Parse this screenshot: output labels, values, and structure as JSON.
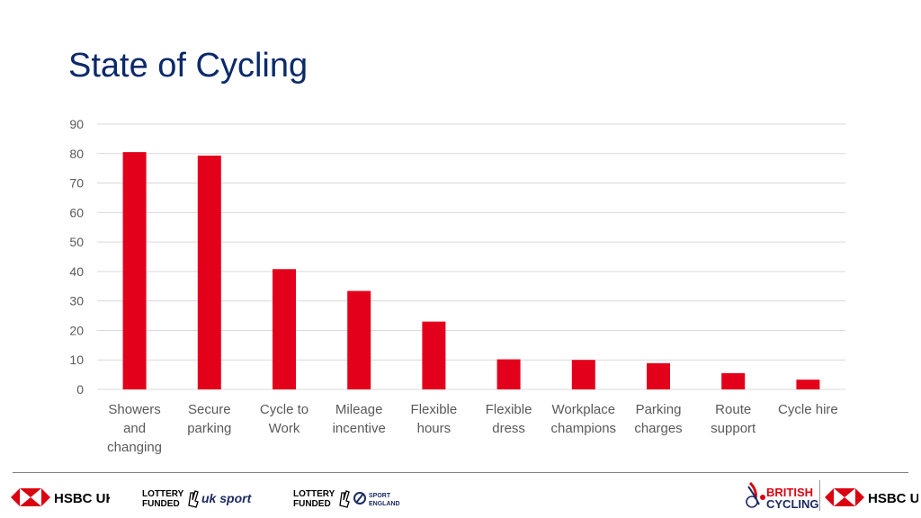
{
  "title": "State of Cycling",
  "colors": {
    "bar": "#e3001b",
    "title": "#0b2a6b",
    "grid": "#d9d9d9"
  },
  "chart_data": {
    "type": "bar",
    "title": "State of Cycling",
    "categories": [
      [
        "Showers",
        "and",
        "changing"
      ],
      [
        "Secure",
        "parking"
      ],
      [
        "Cycle to",
        "Work"
      ],
      [
        "Mileage",
        "incentive"
      ],
      [
        "Flexible",
        "hours"
      ],
      [
        "Flexible",
        "dress"
      ],
      [
        "Workplace",
        "champions"
      ],
      [
        "Parking",
        "charges"
      ],
      [
        "Route",
        "support"
      ],
      [
        "Cycle hire"
      ]
    ],
    "values": [
      80.5,
      79.3,
      40.8,
      33.4,
      23.0,
      10.2,
      10.0,
      8.9,
      5.5,
      3.3
    ],
    "ylim": [
      0,
      90
    ],
    "yticks": [
      0,
      10,
      20,
      30,
      40,
      50,
      60,
      70,
      80,
      90
    ],
    "grid": true,
    "legend": "none"
  },
  "footer": {
    "left_logos": [
      {
        "icon": "hsbc-hexagon-icon",
        "text": "HSBC UK"
      },
      {
        "icon": "lottery-funded-uk-sport-logo",
        "text_top": "LOTTERY",
        "text_bottom": "FUNDED",
        "brand": "uk sport"
      },
      {
        "icon": "lottery-funded-sport-england-logo",
        "text_top": "LOTTERY",
        "text_bottom": "FUNDED",
        "brand_top": "SPORT",
        "brand_bottom": "ENGLAND"
      }
    ],
    "right_logos": [
      {
        "icon": "british-cycling-logo",
        "text_top": "BRITISH",
        "text_bottom": "CYCLING"
      },
      {
        "icon": "hsbc-hexagon-icon",
        "text": "HSBC UK"
      }
    ]
  }
}
